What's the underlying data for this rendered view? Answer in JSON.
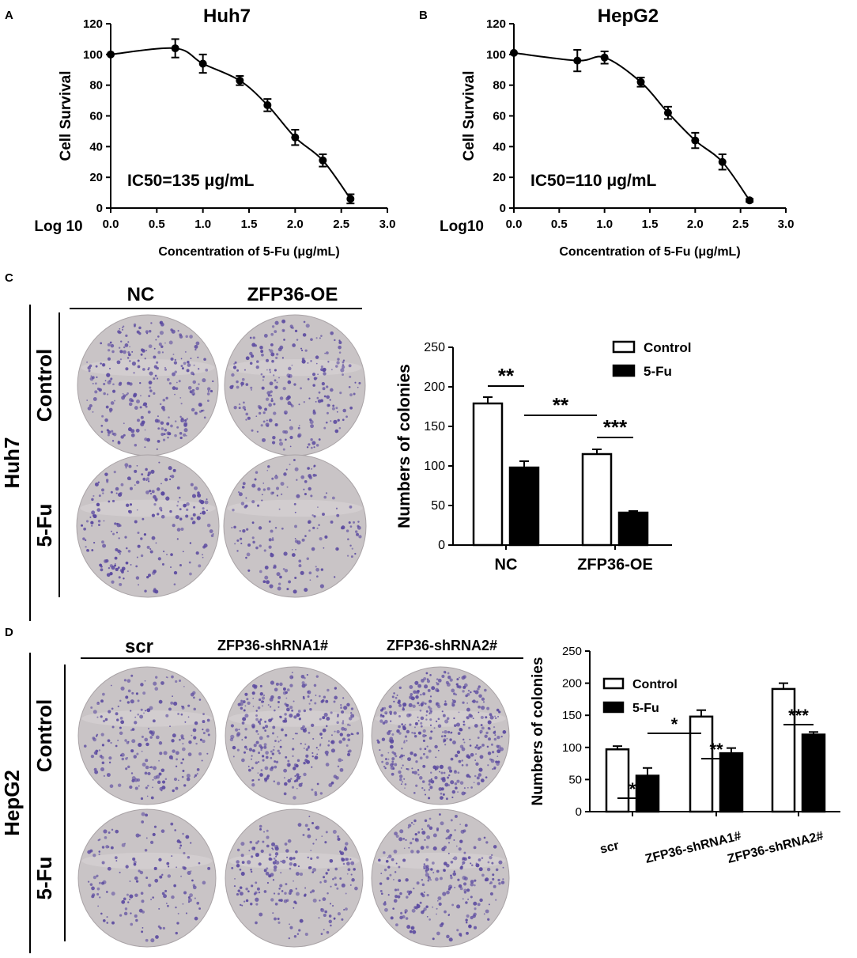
{
  "panel_labels": {
    "a": "A",
    "b": "B",
    "c": "C",
    "d": "D"
  },
  "colors": {
    "ink": "#000000",
    "plate_bg": "#c9c4c6",
    "colony": "#5b4aa0",
    "bar_control": "#ffffff",
    "bar_5fu": "#000000"
  },
  "icons": {
    "plate": "colony-plate-photo"
  },
  "panel_c": {
    "row_group": "Huh7",
    "column_labels": [
      "NC",
      "ZFP36-OE"
    ],
    "row_labels": [
      "Control",
      "5-Fu"
    ]
  },
  "panel_d": {
    "row_group": "HepG2",
    "column_labels": [
      "scr",
      "ZFP36-shRNA1#",
      "ZFP36-shRNA2#"
    ],
    "row_labels": [
      "Control",
      "5-Fu"
    ]
  },
  "chart_data": [
    {
      "id": "A",
      "type": "scatter",
      "title": "Huh7",
      "xlabel": "Concentration of 5-Fu (μg/mL)",
      "x_prefix_label": "Log 10",
      "ylabel": "Cell Survival",
      "annotation": "IC50=135 μg/mL",
      "xlim": [
        0.0,
        3.0
      ],
      "ylim": [
        0,
        120
      ],
      "xticks": [
        "0.0",
        "0.5",
        "1.0",
        "1.5",
        "2.0",
        "2.5",
        "3.0"
      ],
      "yticks": [
        "0",
        "20",
        "40",
        "60",
        "80",
        "100",
        "120"
      ],
      "fit_curve": true,
      "x": [
        0.0,
        0.7,
        1.0,
        1.4,
        1.7,
        2.0,
        2.3,
        2.6
      ],
      "y": [
        100,
        104,
        94,
        83,
        67,
        46,
        31,
        6
      ],
      "error": [
        0,
        6,
        6,
        3,
        4,
        5,
        4,
        3
      ]
    },
    {
      "id": "B",
      "type": "scatter",
      "title": "HepG2",
      "xlabel": "Concentration of 5-Fu (μg/mL)",
      "x_prefix_label": "Log10",
      "ylabel": "Cell Survival",
      "annotation": "IC50=110 μg/mL",
      "xlim": [
        0.0,
        3.0
      ],
      "ylim": [
        0,
        120
      ],
      "xticks": [
        "0.0",
        "0.5",
        "1.0",
        "1.5",
        "2.0",
        "2.5",
        "3.0"
      ],
      "yticks": [
        "0",
        "20",
        "40",
        "60",
        "80",
        "100",
        "120"
      ],
      "fit_curve": true,
      "x": [
        0.0,
        0.7,
        1.0,
        1.4,
        1.7,
        2.0,
        2.3,
        2.6
      ],
      "y": [
        101,
        96,
        98,
        82,
        62,
        44,
        30,
        5
      ],
      "error": [
        0,
        7,
        4,
        3,
        4,
        5,
        5,
        1
      ]
    },
    {
      "id": "C",
      "type": "bar",
      "categories": [
        "NC",
        "ZFP36-OE"
      ],
      "ylabel": "Numbers of colonies",
      "ylim": [
        0,
        250
      ],
      "yticks": [
        "0",
        "50",
        "100",
        "150",
        "200",
        "250"
      ],
      "legend": "top-right",
      "series": [
        {
          "name": "Control",
          "values": [
            179,
            115
          ],
          "errors": [
            8,
            6
          ]
        },
        {
          "name": "5-Fu",
          "values": [
            98,
            41
          ],
          "errors": [
            8,
            2
          ]
        }
      ],
      "significance": [
        {
          "label": "**",
          "from": "NC:Control",
          "to": "NC:5-Fu"
        },
        {
          "label": "**",
          "from": "NC:5-Fu",
          "to": "ZFP36-OE:Control"
        },
        {
          "label": "***",
          "from": "ZFP36-OE:Control",
          "to": "ZFP36-OE:5-Fu"
        }
      ]
    },
    {
      "id": "D",
      "type": "bar",
      "categories": [
        "scr",
        "ZFP36-shRNA1#",
        "ZFP36-shRNA2#"
      ],
      "ylabel": "Numbers of colonies",
      "ylim": [
        0,
        250
      ],
      "yticks": [
        "0",
        "50",
        "100",
        "150",
        "200",
        "250"
      ],
      "legend": "top-left",
      "series": [
        {
          "name": "Control",
          "values": [
            97,
            148,
            191
          ],
          "errors": [
            5,
            10,
            9
          ]
        },
        {
          "name": "5-Fu",
          "values": [
            56,
            91,
            120
          ],
          "errors": [
            12,
            8,
            4
          ]
        }
      ],
      "significance": [
        {
          "label": "*",
          "from": "scr:Control",
          "to": "scr:5-Fu"
        },
        {
          "label": "*",
          "from": "scr:5-Fu",
          "to": "ZFP36-shRNA1#:Control"
        },
        {
          "label": "**",
          "from": "ZFP36-shRNA1#:Control",
          "to": "ZFP36-shRNA1#:5-Fu"
        },
        {
          "label": "***",
          "from": "ZFP36-shRNA2#:Control",
          "to": "ZFP36-shRNA2#:5-Fu"
        }
      ]
    }
  ]
}
